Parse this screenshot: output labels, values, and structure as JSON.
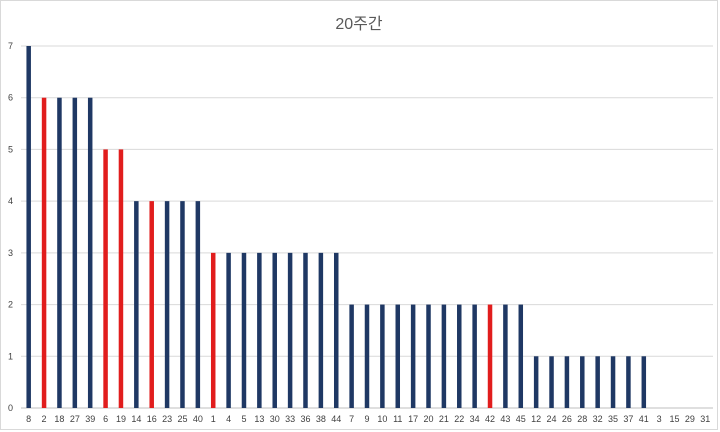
{
  "chart_data": {
    "type": "bar",
    "title": "20주간",
    "xlabel": "",
    "ylabel": "",
    "ylim": [
      0,
      7
    ],
    "yticks": [
      0,
      1,
      2,
      3,
      4,
      5,
      6,
      7
    ],
    "grid": true,
    "legend": "none",
    "categories": [
      "8",
      "2",
      "18",
      "27",
      "39",
      "6",
      "19",
      "14",
      "16",
      "23",
      "25",
      "40",
      "1",
      "4",
      "5",
      "13",
      "30",
      "33",
      "36",
      "38",
      "44",
      "7",
      "9",
      "10",
      "11",
      "17",
      "20",
      "21",
      "22",
      "34",
      "42",
      "43",
      "45",
      "12",
      "24",
      "26",
      "28",
      "32",
      "35",
      "37",
      "41",
      "3",
      "15",
      "29",
      "31"
    ],
    "values": [
      7,
      6,
      6,
      6,
      6,
      5,
      5,
      4,
      4,
      4,
      4,
      4,
      3,
      3,
      3,
      3,
      3,
      3,
      3,
      3,
      3,
      2,
      2,
      2,
      2,
      2,
      2,
      2,
      2,
      2,
      2,
      2,
      2,
      1,
      1,
      1,
      1,
      1,
      1,
      1,
      1,
      0,
      0,
      0,
      0
    ],
    "highlighted": [
      "2",
      "6",
      "19",
      "16",
      "1",
      "42"
    ],
    "colors": {
      "default": "#1f3864",
      "highlight": "#e11d1d",
      "grid": "#d9d9d9",
      "axis": "#bfbfbf"
    }
  }
}
